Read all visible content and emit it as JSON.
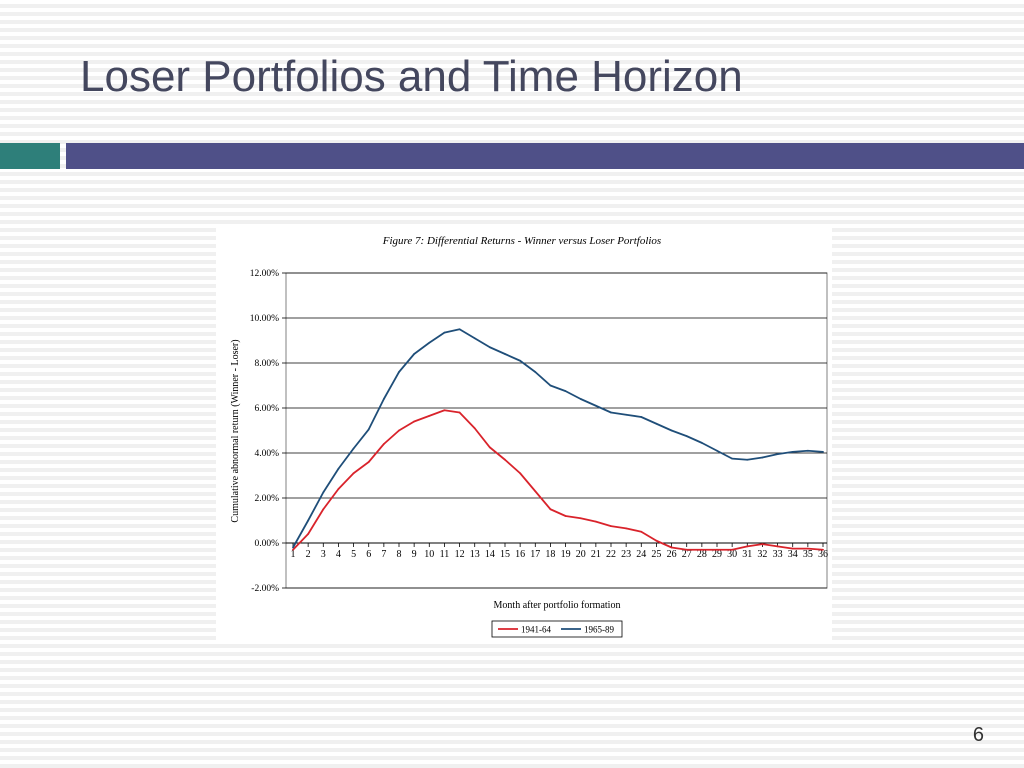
{
  "slide": {
    "title": "Loser Portfolios and Time Horizon",
    "page_number": "6"
  },
  "colors": {
    "title_text": "#44475e",
    "accent_teal": "#2e7f7a",
    "accent_bar": "#4f5088",
    "series_1941_64": "#d9232b",
    "series_1965_89": "#1f4e79"
  },
  "chart_data": {
    "type": "line",
    "title": "Figure 7: Differential Returns - Winner versus Loser Portfolios",
    "xlabel": "Month after portfolio formation",
    "ylabel": "Cumulative abnormal return (Winner - Loser)",
    "x": [
      1,
      2,
      3,
      4,
      5,
      6,
      7,
      8,
      9,
      10,
      11,
      12,
      13,
      14,
      15,
      16,
      17,
      18,
      19,
      20,
      21,
      22,
      23,
      24,
      25,
      26,
      27,
      28,
      29,
      30,
      31,
      32,
      33,
      34,
      35,
      36
    ],
    "ylim": [
      -2,
      12
    ],
    "y_ticks": [
      "-2.00%",
      "0.00%",
      "2.00%",
      "4.00%",
      "6.00%",
      "8.00%",
      "10.00%",
      "12.00%"
    ],
    "y_tick_values": [
      -2,
      0,
      2,
      4,
      6,
      8,
      10,
      12
    ],
    "grid": true,
    "legend_position": "bottom-center",
    "series": [
      {
        "name": "1941-64",
        "color": "#d9232b",
        "values": [
          -0.3,
          0.4,
          1.5,
          2.4,
          3.1,
          3.6,
          4.4,
          5.0,
          5.4,
          5.65,
          5.9,
          5.8,
          5.1,
          4.25,
          3.7,
          3.1,
          2.3,
          1.5,
          1.2,
          1.1,
          0.95,
          0.75,
          0.65,
          0.5,
          0.1,
          -0.2,
          -0.3,
          -0.3,
          -0.3,
          -0.3,
          -0.15,
          -0.05,
          -0.15,
          -0.25,
          -0.25,
          -0.3
        ]
      },
      {
        "name": "1965-89",
        "color": "#1f4e79",
        "values": [
          -0.2,
          1.0,
          2.25,
          3.3,
          4.2,
          5.05,
          6.4,
          7.6,
          8.4,
          8.9,
          9.35,
          9.5,
          9.1,
          8.7,
          8.4,
          8.1,
          7.6,
          7.0,
          6.75,
          6.4,
          6.1,
          5.8,
          5.7,
          5.6,
          5.3,
          5.0,
          4.75,
          4.45,
          4.1,
          3.75,
          3.7,
          3.8,
          3.95,
          4.05,
          4.1,
          4.05
        ]
      }
    ]
  }
}
